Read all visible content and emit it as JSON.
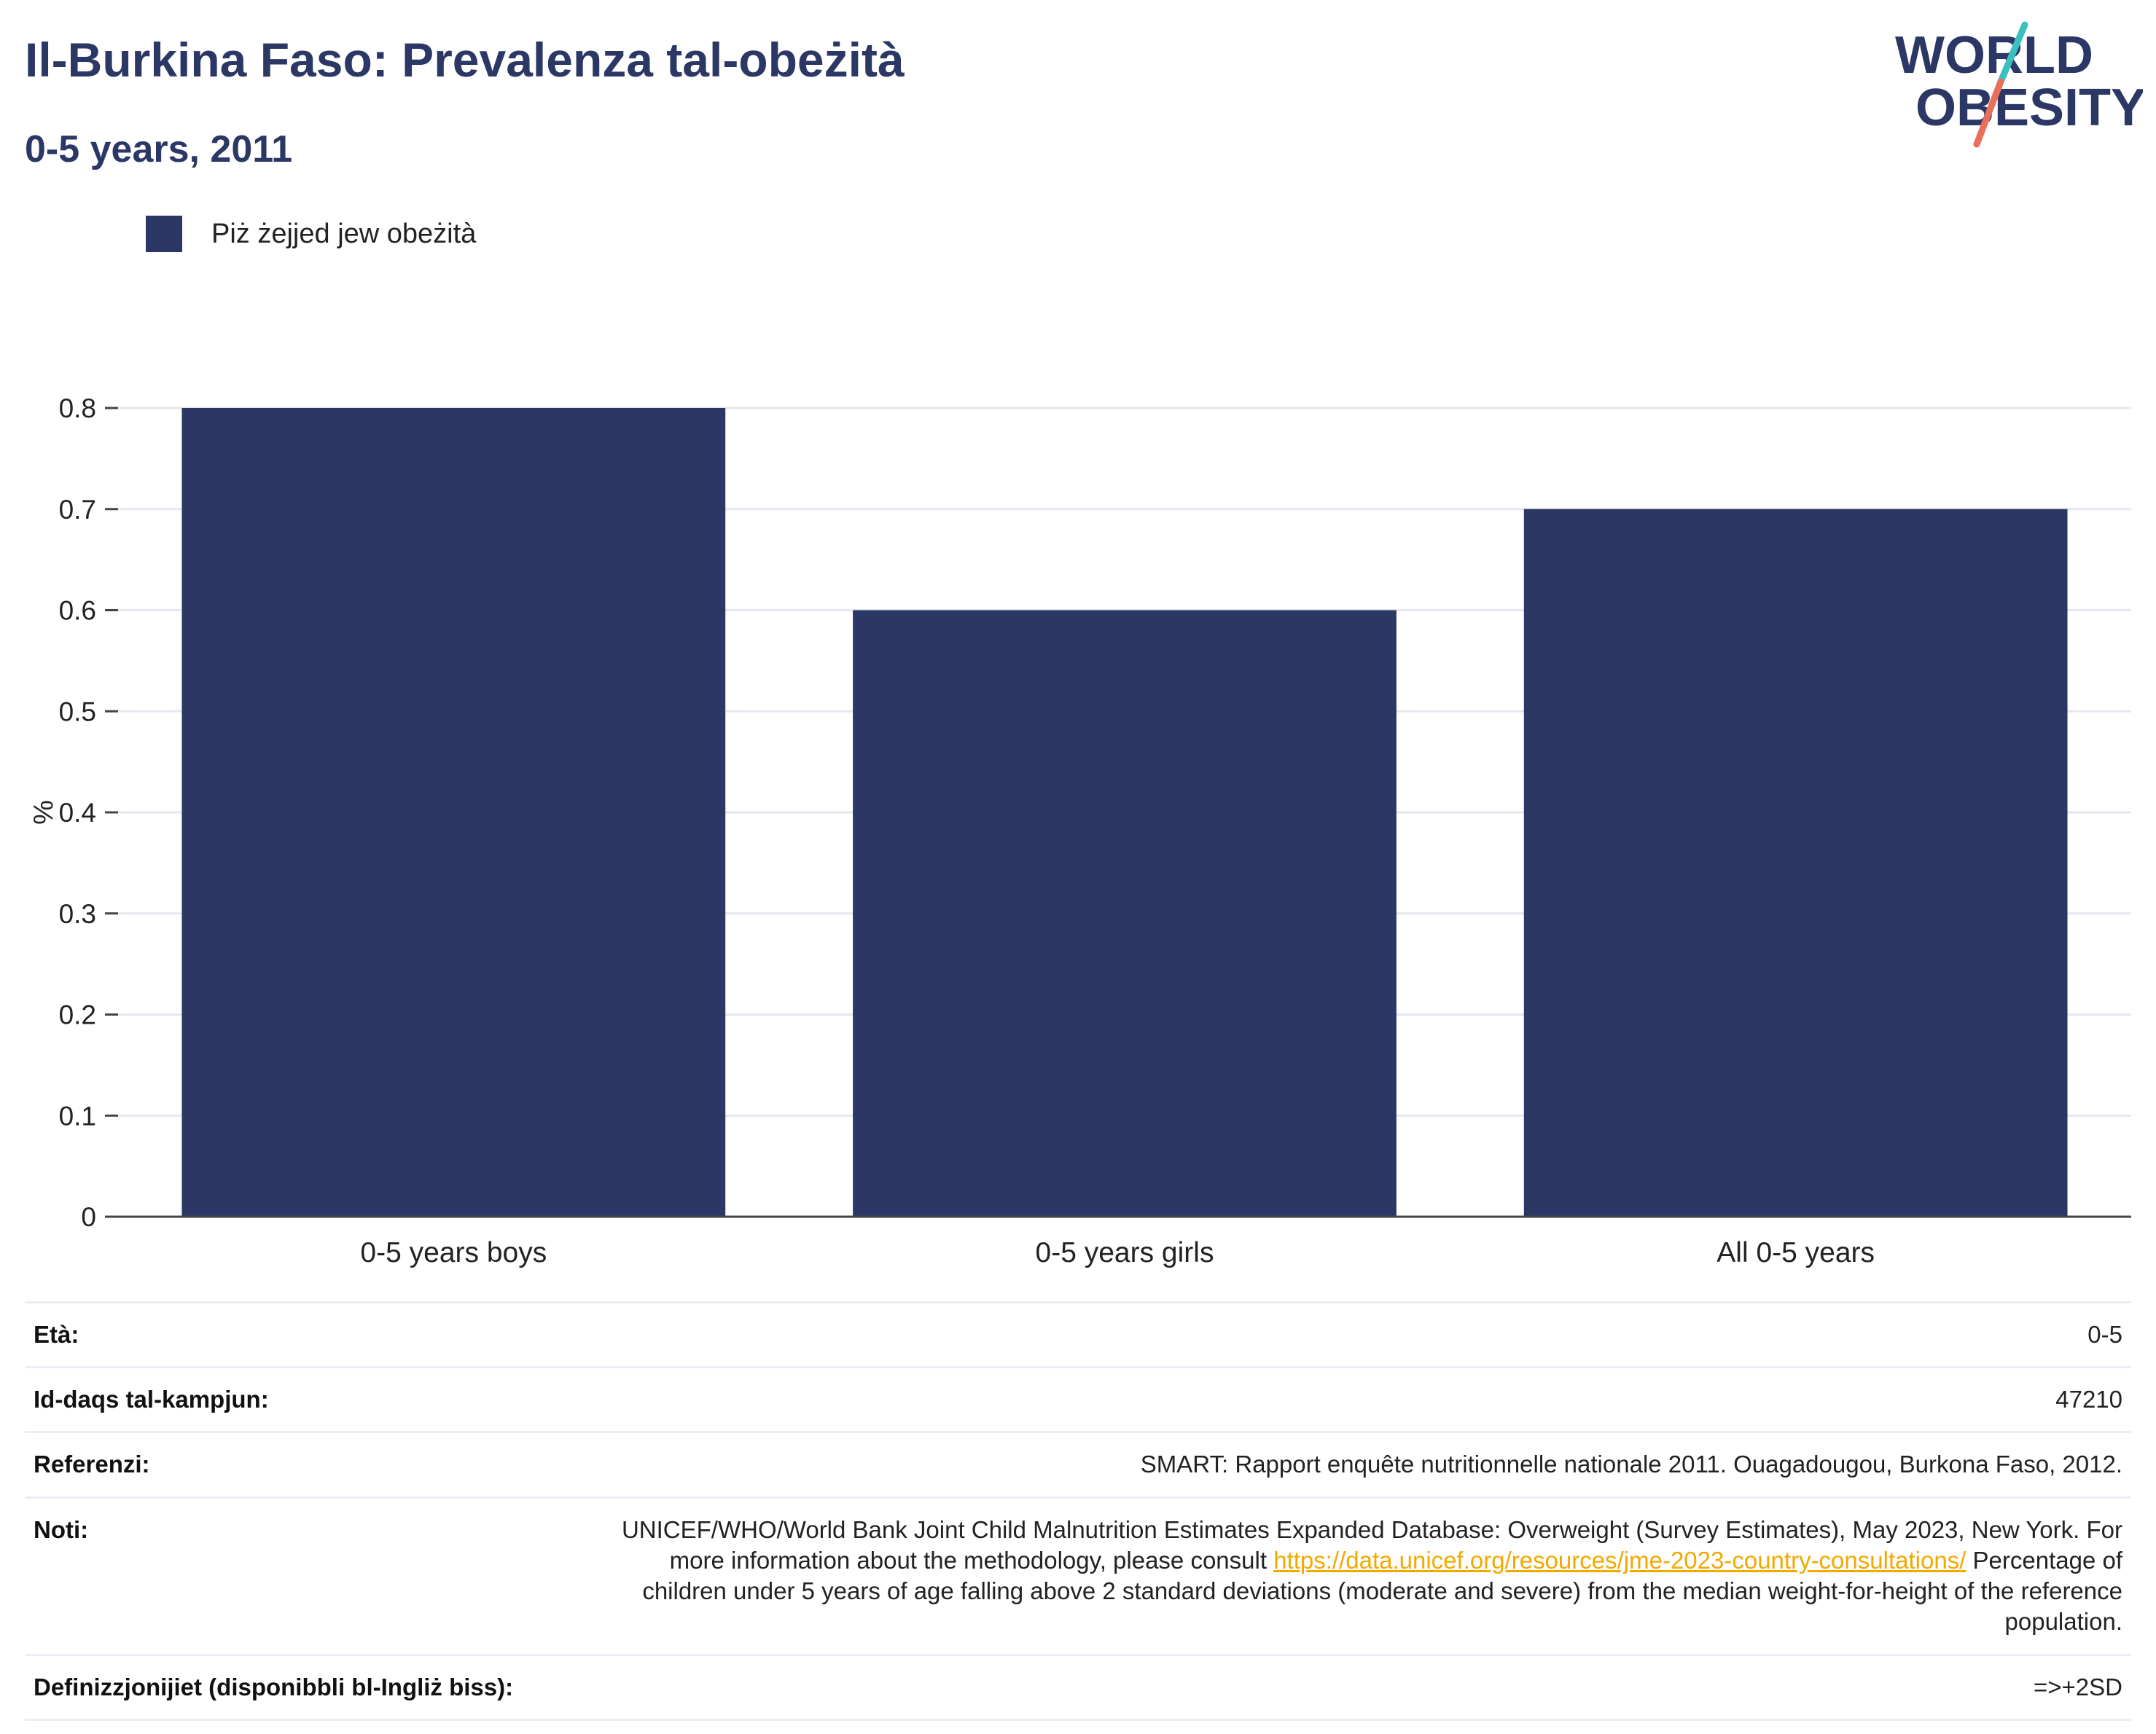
{
  "title": "Il-Burkina Faso: Prevalenza tal-obeżità",
  "subtitle": "0-5 years, 2011",
  "logo": {
    "line1": "WORLD",
    "line2": "OBESITY",
    "colors": {
      "text": "#2b3764",
      "slash_top": "#3bbfbf",
      "slash_bottom": "#e8705a"
    }
  },
  "legend": {
    "label": "Piż żejjed jew obeżità",
    "color": "#2b3764"
  },
  "chart_data": {
    "type": "bar",
    "categories": [
      "0-5 years boys",
      "0-5 years girls",
      "All 0-5 years"
    ],
    "series": [
      {
        "name": "Piż żejjed jew obeżità",
        "values": [
          0.8,
          0.6,
          0.7
        ],
        "color": "#2b3764"
      }
    ],
    "ylabel": "%",
    "xlabel": "",
    "ylim": [
      0,
      0.8
    ],
    "yticks": [
      "0",
      "0.1",
      "0.2",
      "0.3",
      "0.4",
      "0.5",
      "0.6",
      "0.7",
      "0.8"
    ],
    "grid": true,
    "legend_position": "top-left"
  },
  "meta": [
    {
      "key": "Età:",
      "value": "0-5"
    },
    {
      "key": "Id-daqs tal-kampjun:",
      "value": "47210"
    },
    {
      "key": "Referenzi:",
      "value": "SMART: Rapport enquête nutritionnelle nationale 2011. Ouagadougou, Burkona Faso, 2012."
    },
    {
      "key": "Noti:",
      "value_before": "UNICEF/WHO/World Bank Joint Child Malnutrition Estimates Expanded Database: Overweight (Survey Estimates), May 2023, New York. For more information about the methodology, please consult",
      "link": "https://data.unicef.org/resources/jme-2023-country-consultations/",
      "value_after": "Percentage of children under 5 years of age falling above 2 standard deviations (moderate and severe) from the median weight-for-height of the reference population."
    },
    {
      "key": "Definizzjonijiet (disponibbli bl-Ingliż biss):",
      "value": "=>+2SD"
    }
  ]
}
